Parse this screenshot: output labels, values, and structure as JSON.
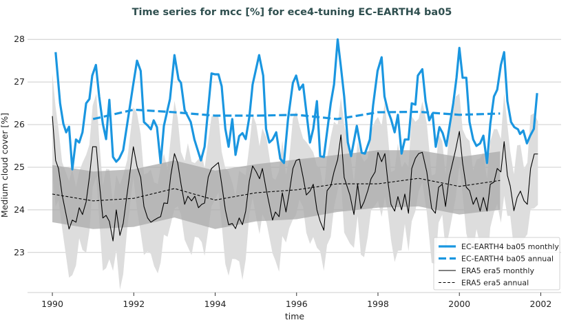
{
  "chart_data": {
    "type": "line",
    "title": "Time series for mcc [%] for ece4-tuning EC-EARTH4 ba05",
    "xlabel": "time",
    "ylabel": "Medium cloud cover [%]",
    "xlim": [
      1989.39,
      2002.5
    ],
    "ylim": [
      22.06,
      28.52
    ],
    "xticks": [
      1990,
      1992,
      1994,
      1996,
      1998,
      2000,
      2002
    ],
    "yticks": [
      23,
      24,
      25,
      26,
      27,
      28
    ],
    "grid": "horizontal",
    "legend_position": "bottom-right",
    "colors": {
      "model": "#1a96e0",
      "obs": "#000000",
      "band_dark": "#aaaaaa",
      "band_light": "#dddddd",
      "grid": "#cccccc",
      "title": "#2f4f4f"
    },
    "series": [
      {
        "name": "EC-EARTH4 ba05 monthly",
        "style": "solid-thick",
        "color": "#1a96e0",
        "x": [
          1990.08,
          1990.19,
          1990.27,
          1990.34,
          1990.41,
          1990.49,
          1990.58,
          1990.66,
          1990.74,
          1990.83,
          1990.91,
          1990.98,
          1991.07,
          1991.15,
          1991.24,
          1991.32,
          1991.4,
          1991.49,
          1991.57,
          1991.64,
          1991.74,
          1991.84,
          1991.98,
          1992.08,
          1992.17,
          1992.25,
          1992.34,
          1992.42,
          1992.49,
          1992.57,
          1992.66,
          1992.74,
          1992.89,
          1993.0,
          1993.1,
          1993.16,
          1993.25,
          1993.4,
          1993.49,
          1993.65,
          1993.74,
          1993.91,
          1993.99,
          1994.08,
          1994.16,
          1994.25,
          1994.33,
          1994.42,
          1994.5,
          1994.59,
          1994.67,
          1994.75,
          1994.84,
          1994.92,
          1995.08,
          1995.18,
          1995.25,
          1995.33,
          1995.41,
          1995.5,
          1995.6,
          1995.69,
          1995.79,
          1995.91,
          1995.99,
          1996.07,
          1996.16,
          1996.33,
          1996.41,
          1996.5,
          1996.58,
          1996.67,
          1996.84,
          1996.92,
          1997.01,
          1997.09,
          1997.17,
          1997.26,
          1997.34,
          1997.48,
          1997.6,
          1997.68,
          1997.8,
          1997.88,
          1997.99,
          1998.09,
          1998.16,
          1998.24,
          1998.32,
          1998.41,
          1998.49,
          1998.58,
          1998.66,
          1998.75,
          1998.83,
          1998.92,
          1998.98,
          1999.09,
          1999.17,
          1999.26,
          1999.34,
          1999.42,
          1999.51,
          1999.59,
          1999.68,
          1999.76,
          1999.85,
          1999.93,
          2000.0,
          2000.08,
          2000.17,
          2000.25,
          2000.34,
          2000.42,
          2000.51,
          2000.59,
          2000.68,
          2000.76,
          2000.85,
          2000.93,
          2001.02,
          2001.1,
          2001.18,
          2001.27,
          2001.35,
          2001.44,
          2001.49,
          2001.57,
          2001.66,
          2001.74,
          2001.83,
          2001.91
        ],
        "y": [
          27.7,
          26.5,
          26.02,
          25.82,
          25.95,
          24.95,
          25.65,
          25.58,
          25.82,
          26.5,
          26.6,
          27.15,
          27.4,
          26.66,
          26.02,
          25.66,
          26.58,
          25.24,
          25.13,
          25.2,
          25.4,
          26.02,
          26.9,
          27.5,
          27.26,
          26.06,
          25.98,
          25.89,
          26.1,
          25.94,
          25.1,
          25.97,
          26.6,
          27.63,
          27.06,
          26.98,
          26.34,
          26.06,
          25.65,
          25.16,
          25.48,
          27.2,
          27.18,
          27.18,
          26.9,
          25.9,
          25.48,
          26.13,
          25.29,
          25.73,
          25.8,
          25.66,
          26.18,
          26.94,
          27.63,
          27.15,
          25.9,
          25.58,
          25.65,
          25.82,
          25.2,
          25.1,
          26.13,
          26.98,
          27.15,
          26.82,
          26.94,
          25.58,
          25.9,
          26.55,
          25.26,
          25.24,
          26.5,
          26.94,
          28.0,
          27.35,
          26.66,
          25.58,
          25.26,
          25.97,
          25.34,
          25.32,
          25.65,
          26.45,
          27.26,
          27.58,
          26.66,
          26.34,
          26.13,
          25.82,
          26.23,
          25.32,
          25.65,
          25.65,
          26.5,
          26.47,
          27.15,
          27.3,
          26.55,
          26.1,
          26.26,
          25.48,
          25.94,
          25.8,
          25.5,
          25.97,
          26.5,
          27.1,
          27.8,
          27.1,
          27.1,
          26.06,
          25.65,
          25.5,
          25.56,
          25.74,
          25.1,
          26.02,
          26.66,
          26.82,
          27.4,
          27.7,
          26.55,
          26.06,
          25.94,
          25.89,
          25.78,
          25.86,
          25.56,
          25.74,
          25.9,
          26.74
        ]
      },
      {
        "name": "EC-EARTH4 ba05 annual",
        "style": "dashed-thick",
        "color": "#1a96e0",
        "x": [
          1991,
          1992,
          1993,
          1994,
          1995,
          1996,
          1997,
          1998,
          1999,
          2000,
          2001
        ],
        "y": [
          26.13,
          26.35,
          26.29,
          26.21,
          26.21,
          26.23,
          26.13,
          26.29,
          26.3,
          26.23,
          26.26
        ]
      },
      {
        "name": "ERA5 era5 monthly",
        "style": "solid-thin",
        "color": "#000000",
        "x": [
          1990.0,
          1990.08,
          1990.15,
          1990.24,
          1990.41,
          1990.49,
          1990.58,
          1990.66,
          1990.74,
          1990.83,
          1990.91,
          1990.99,
          1991.08,
          1991.15,
          1991.24,
          1991.32,
          1991.4,
          1991.49,
          1991.57,
          1991.66,
          1991.74,
          1991.84,
          1991.99,
          1992.08,
          1992.17,
          1992.25,
          1992.34,
          1992.42,
          1992.5,
          1992.59,
          1992.66,
          1992.74,
          1992.83,
          1992.91,
          1993.0,
          1993.08,
          1993.16,
          1993.25,
          1993.33,
          1993.42,
          1993.5,
          1993.59,
          1993.67,
          1993.74,
          1993.83,
          1993.91,
          1994.08,
          1994.16,
          1994.25,
          1994.33,
          1994.42,
          1994.5,
          1994.59,
          1994.67,
          1994.75,
          1994.84,
          1994.92,
          1995.01,
          1995.09,
          1995.16,
          1995.26,
          1995.41,
          1995.48,
          1995.57,
          1995.65,
          1995.74,
          1995.82,
          1995.91,
          1995.99,
          1996.07,
          1996.16,
          1996.24,
          1996.33,
          1996.41,
          1996.5,
          1996.58,
          1996.67,
          1996.75,
          1996.84,
          1996.92,
          1997.01,
          1997.09,
          1997.17,
          1997.31,
          1997.41,
          1997.5,
          1997.58,
          1997.66,
          1997.75,
          1997.83,
          1997.93,
          1998.0,
          1998.09,
          1998.17,
          1998.24,
          1998.32,
          1998.41,
          1998.49,
          1998.58,
          1998.66,
          1998.75,
          1998.83,
          1998.92,
          1999.0,
          1999.09,
          1999.2,
          1999.32,
          1999.41,
          1999.49,
          1999.58,
          1999.66,
          1999.75,
          1999.91,
          2000.0,
          2000.08,
          2000.17,
          2000.25,
          2000.34,
          2000.42,
          2000.51,
          2000.59,
          2000.68,
          2000.76,
          2000.85,
          2000.93,
          2001.02,
          2001.1,
          2001.18,
          2001.25,
          2001.34,
          2001.42,
          2001.5,
          2001.59,
          2001.67,
          2001.75,
          2001.84,
          2001.93
        ],
        "y": [
          26.2,
          25.16,
          24.97,
          24.35,
          23.55,
          23.76,
          23.71,
          24.05,
          23.89,
          24.19,
          24.77,
          25.48,
          25.48,
          24.68,
          23.81,
          23.87,
          23.73,
          23.27,
          24.0,
          23.4,
          23.68,
          24.4,
          25.48,
          25.02,
          24.76,
          24.08,
          23.81,
          23.71,
          23.76,
          23.81,
          23.84,
          24.16,
          24.15,
          24.81,
          25.32,
          25.1,
          24.61,
          24.13,
          24.32,
          24.21,
          24.32,
          24.05,
          24.13,
          24.16,
          24.77,
          24.97,
          25.11,
          24.61,
          24.0,
          23.65,
          23.68,
          23.56,
          23.81,
          23.65,
          23.97,
          24.68,
          25.03,
          24.89,
          24.73,
          24.97,
          24.45,
          23.76,
          23.95,
          23.84,
          24.4,
          23.95,
          24.4,
          24.97,
          25.16,
          25.19,
          24.77,
          24.35,
          24.44,
          24.6,
          24.0,
          23.73,
          23.52,
          24.45,
          24.56,
          24.89,
          25.18,
          25.76,
          24.76,
          24.35,
          23.89,
          24.6,
          24.03,
          24.19,
          24.45,
          24.73,
          24.89,
          25.35,
          25.13,
          25.32,
          24.69,
          24.13,
          23.97,
          24.31,
          24.0,
          24.37,
          23.92,
          24.97,
          25.21,
          25.32,
          25.35,
          24.89,
          24.03,
          23.92,
          24.53,
          24.6,
          24.08,
          24.76,
          25.42,
          25.84,
          25.1,
          24.53,
          24.45,
          24.13,
          24.29,
          23.97,
          24.29,
          23.97,
          24.6,
          24.65,
          24.97,
          24.89,
          25.6,
          24.81,
          24.56,
          23.98,
          24.29,
          24.44,
          24.21,
          24.13,
          24.97,
          25.31,
          25.31
        ]
      },
      {
        "name": "ERA5 era5 annual",
        "style": "dashed-thin",
        "color": "#000000",
        "x": [
          1990,
          1991,
          1992,
          1993,
          1994,
          1995,
          1996,
          1997,
          1998,
          1999,
          2000,
          2001
        ],
        "y": [
          24.37,
          24.21,
          24.27,
          24.5,
          24.23,
          24.4,
          24.47,
          24.61,
          24.61,
          24.74,
          24.55,
          24.69
        ]
      }
    ],
    "bands": [
      {
        "of": "ERA5 era5 annual",
        "color": "#aaaaaa",
        "x": [
          1990,
          1991,
          1992,
          1993,
          1994,
          1995,
          1996,
          1997,
          1998,
          1999,
          2000,
          2001
        ],
        "upper": [
          25.05,
          24.9,
          24.95,
          25.16,
          24.92,
          25.07,
          25.18,
          25.29,
          25.4,
          25.4,
          25.24,
          25.37
        ],
        "lower": [
          23.71,
          23.55,
          23.6,
          23.82,
          23.55,
          23.73,
          23.78,
          23.95,
          24.05,
          24.08,
          23.89,
          24.0
        ]
      },
      {
        "of": "ERA5 era5 monthly",
        "color": "#dddddd",
        "halfwidth": 1.0
      }
    ]
  }
}
